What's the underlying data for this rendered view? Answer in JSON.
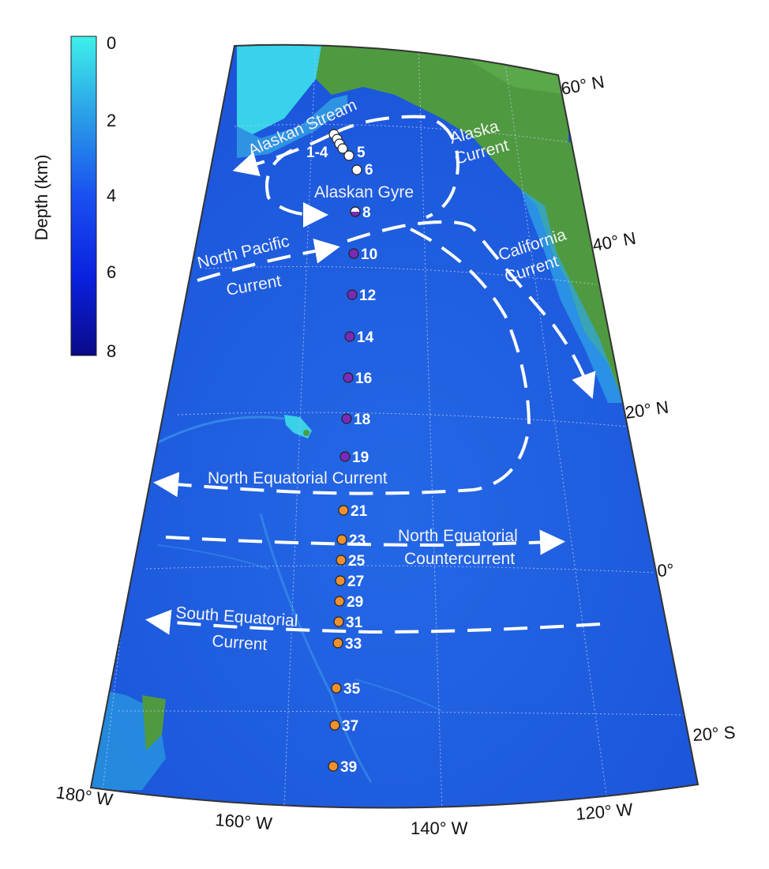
{
  "colorbar": {
    "title": "Depth (km)",
    "ticks": [
      "0",
      "2",
      "4",
      "6",
      "8"
    ],
    "colors": [
      "#3ee6e6",
      "#2a8fe6",
      "#1a47f0",
      "#0a1ad8",
      "#0a0a8a"
    ]
  },
  "colors": {
    "ocean": "#1e5fe0",
    "ocean_deep": "#1440c8",
    "land": "#4e9a3e",
    "shelf": "#3ac8e8",
    "station_white": "#ffffff",
    "station_purple": "#7a2ab8",
    "station_orange": "#f0912c"
  },
  "latitude_labels": [
    "60° N",
    "40° N",
    "20° N",
    "0°",
    "20° S"
  ],
  "longitude_labels": [
    "180° W",
    "160° W",
    "140° W",
    "120° W"
  ],
  "currents": {
    "alaskan_stream": "Alaskan Stream",
    "alaska_current": [
      "Alaska",
      "Current"
    ],
    "alaskan_gyre": "Alaskan Gyre",
    "north_pacific": [
      "North Pacific",
      "Current"
    ],
    "california": [
      "California",
      "Current"
    ],
    "north_equatorial": "North Equatorial Current",
    "countercurrent": [
      "North Equatorial",
      "Countercurrent"
    ],
    "south_equatorial": [
      "South Equatorial",
      "Current"
    ]
  },
  "stations": [
    {
      "label": "1-4",
      "group": "white"
    },
    {
      "label": "5",
      "group": "white"
    },
    {
      "label": "6",
      "group": "white"
    },
    {
      "label": "8",
      "group": "white-purple"
    },
    {
      "label": "10",
      "group": "purple"
    },
    {
      "label": "12",
      "group": "purple"
    },
    {
      "label": "14",
      "group": "purple"
    },
    {
      "label": "16",
      "group": "purple"
    },
    {
      "label": "18",
      "group": "purple"
    },
    {
      "label": "19",
      "group": "purple"
    },
    {
      "label": "21",
      "group": "orange"
    },
    {
      "label": "23",
      "group": "orange"
    },
    {
      "label": "25",
      "group": "orange"
    },
    {
      "label": "27",
      "group": "orange"
    },
    {
      "label": "29",
      "group": "orange"
    },
    {
      "label": "31",
      "group": "orange"
    },
    {
      "label": "33",
      "group": "orange"
    },
    {
      "label": "35",
      "group": "orange"
    },
    {
      "label": "37",
      "group": "orange"
    },
    {
      "label": "39",
      "group": "orange"
    }
  ]
}
